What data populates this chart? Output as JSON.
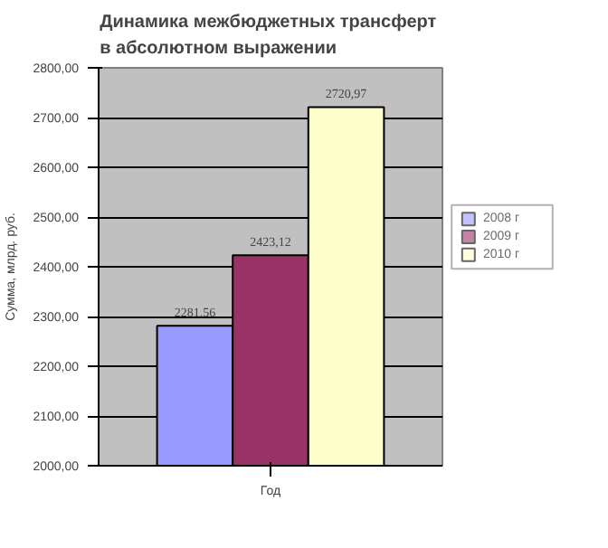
{
  "chart_data": {
    "type": "bar",
    "title": "Динамика  межбюджетных трансферт\nв абсолютном выражении",
    "xlabel": "Год",
    "ylabel": "Сумма, млрд. руб.",
    "categories": [
      null
    ],
    "series": [
      {
        "name": "2008 г",
        "color": "#9999ff",
        "values": [
          2281.56
        ],
        "value_labels": [
          "2281,56"
        ]
      },
      {
        "name": "2009 г",
        "color": "#993366",
        "values": [
          2423.12
        ],
        "value_labels": [
          "2423,12"
        ]
      },
      {
        "name": "2010 г",
        "color": "#ffffcc",
        "values": [
          2720.97
        ],
        "value_labels": [
          "2720,97"
        ]
      }
    ],
    "ylim": [
      2000,
      2800
    ],
    "yticks": [
      {
        "value": 2000,
        "label": "2000,00"
      },
      {
        "value": 2100,
        "label": "2100,00"
      },
      {
        "value": 2200,
        "label": "2200,00"
      },
      {
        "value": 2300,
        "label": "2300,00"
      },
      {
        "value": 2400,
        "label": "2400,00"
      },
      {
        "value": 2500,
        "label": "2500,00"
      },
      {
        "value": 2600,
        "label": "2600,00"
      },
      {
        "value": 2700,
        "label": "2700,00"
      },
      {
        "value": 2800,
        "label": "2800,00"
      }
    ],
    "grid": "y",
    "legend": "right"
  }
}
